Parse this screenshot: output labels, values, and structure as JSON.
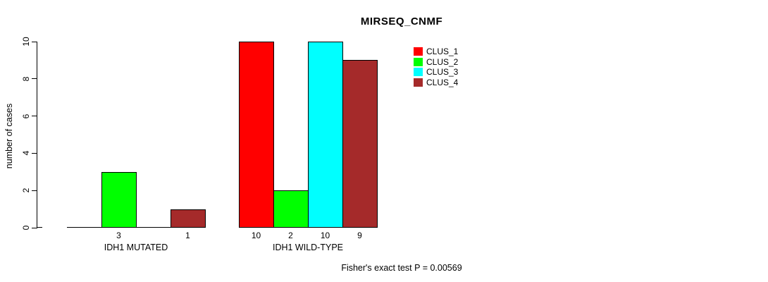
{
  "chart": {
    "title": "MIRSEQ_CNMF",
    "ylabel": "number of cases",
    "annotation": "Fisher's exact test P = 0.00569"
  },
  "chart_data": {
    "type": "bar",
    "title": "MIRSEQ_CNMF",
    "xlabel": "",
    "ylabel": "number of cases",
    "categories": [
      "IDH1 MUTATED",
      "IDH1 WILD-TYPE"
    ],
    "series": [
      {
        "name": "CLUS_1",
        "color": "#ff0000",
        "values": [
          0,
          10
        ]
      },
      {
        "name": "CLUS_2",
        "color": "#00ff00",
        "values": [
          3,
          2
        ]
      },
      {
        "name": "CLUS_3",
        "color": "#00ffff",
        "values": [
          0,
          10
        ]
      },
      {
        "name": "CLUS_4",
        "color": "#a52a2a",
        "values": [
          1,
          9
        ]
      }
    ],
    "ylim": [
      0,
      10
    ],
    "yticks": [
      0,
      2,
      4,
      6,
      8,
      10
    ],
    "grid": false,
    "legend_position": "top-right",
    "legend_entries": [
      "CLUS_1",
      "CLUS_2",
      "CLUS_3",
      "CLUS_4"
    ],
    "bar_value_labels_note": "non-zero bar values printed below axis under each bar",
    "annotation": "Fisher's exact test P = 0.00569"
  }
}
